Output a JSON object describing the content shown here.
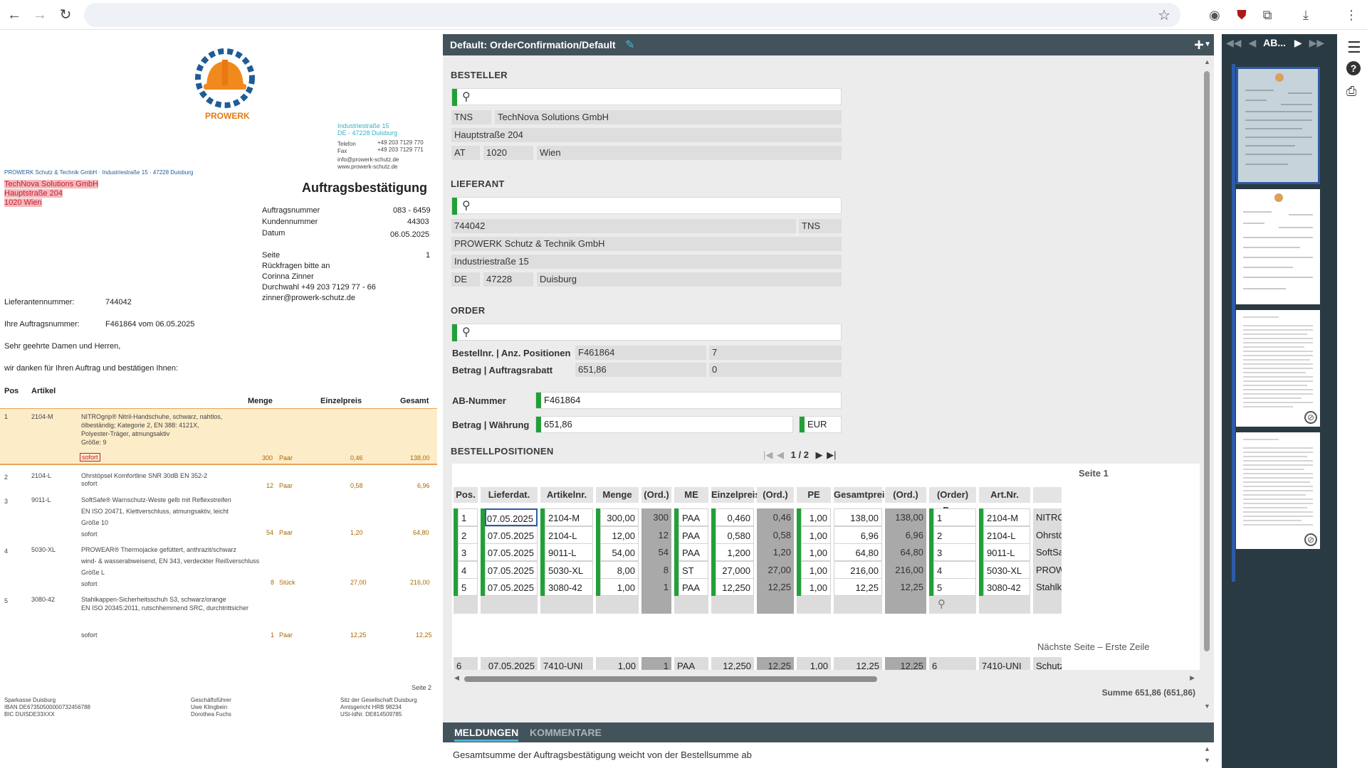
{
  "browser": {
    "back_icon": "arrow-left-icon",
    "forward_icon": "arrow-right-icon",
    "reload_icon": "reload-icon"
  },
  "doc": {
    "brand": "PROWERK",
    "sender_address_block": [
      "Industriestraße 15",
      "DE - 47228 Duisburg"
    ],
    "sender_contact": [
      "Telefon",
      "+49 203 7129 770",
      "Fax",
      "+49 203 7129 771",
      "info@prowerk-schutz.de",
      "www.prowerk-schutz.de"
    ],
    "sender_line": "PROWERK Schutz & Technik GmbH · Industriestraße 15 · 47228 Duisburg",
    "recipient": [
      "TechNova Solutions GmbH",
      "Hauptstraße 204",
      "1020 Wien"
    ],
    "title": "Auftragsbestätigung",
    "meta": [
      {
        "k": "Auftragsnummer",
        "v": "083 - 6459"
      },
      {
        "k": "Kundennummer",
        "v": "44303"
      },
      {
        "k": "Datum",
        "v": "06.05.2025"
      }
    ],
    "seite_label": "Seite",
    "seite_value": "1",
    "contact_lines": [
      "Rückfragen bitte an",
      "Corinna Zinner",
      "Durchwahl +49 203 7129 77 - 66",
      "zinner@prowerk-schutz.de"
    ],
    "lieferantennummer_label": "Lieferantennummer:",
    "lieferantennummer_value": "744042",
    "ihre_label": "Ihre Auftragsnummer:",
    "ihre_value": "F461864 vom 06.05.2025",
    "greeting": "Sehr geehrte Damen und Herren,",
    "intro": "wir danken für Ihren Auftrag und bestätigen Ihnen:",
    "col_pos": "Pos",
    "col_artikel": "Artikel",
    "col_menge": "Menge",
    "col_einzelpreis": "Einzelpreis",
    "col_gesamt": "Gesamt",
    "items": [
      {
        "pos": "1",
        "art": "2104-M",
        "desc": [
          "NITROgrip® Nitril-Handschuhe, schwarz, nahtlos,",
          "ölbeständig; Kategorie 2, EN 388: 4121X,",
          "Polyester-Träger, atmungsaktiv",
          "Größe: 9"
        ],
        "lief": "sofort",
        "menge": "300",
        "me": "Paar",
        "ep": "0,46",
        "ges": "138,00"
      },
      {
        "pos": "2",
        "art": "2104-L",
        "desc": [
          "Ohrstöpsel Komfortline SNR 30dB EN 352-2"
        ],
        "lief": "sofort",
        "menge": "12",
        "me": "Paar",
        "ep": "0,58",
        "ges": "6,96"
      },
      {
        "pos": "3",
        "art": "9011-L",
        "desc": [
          "SoftSafe® Warnschutz-Weste gelb mit Reflexstreifen",
          "EN ISO 20471, Klettverschluss, atmungsaktiv, leicht",
          "Größe 10"
        ],
        "lief": "sofort",
        "menge": "54",
        "me": "Paar",
        "ep": "1,20",
        "ges": "64,80"
      },
      {
        "pos": "4",
        "art": "5030-XL",
        "desc": [
          "PROWEAR® Thermojacke gefüttert, anthrazit/schwarz",
          "wind- & wasserabweisend, EN 343, verdeckter Reißverschluss",
          "Größe L"
        ],
        "lief": "sofort",
        "menge": "8",
        "me": "Stück",
        "ep": "27,00",
        "ges": "216,00"
      },
      {
        "pos": "5",
        "art": "3080-42",
        "desc": [
          "Stahlkappen-Sicherheitsschuh S3, schwarz/orange",
          "EN ISO 20345:2011, rutschhemmend SRC, durchtrittsicher"
        ],
        "lief": "sofort",
        "menge": "1",
        "me": "Paar",
        "ep": "12,25",
        "ges": "12,25"
      }
    ],
    "seite2": "Seite 2",
    "footer_bank": [
      "Sparkasse Duisburg",
      "IBAN   DE67350500000732456788",
      "BIC     DUISDE33XXX"
    ],
    "footer_gf": [
      "Geschäftsführer",
      "Uwe Klingbein",
      "Dorothea Fuchs"
    ],
    "footer_sitz": [
      "Sitz der Gesellschaft   Duisburg",
      "Amtsgericht     HRB     98234",
      "USt-IdNr.     DE814509785"
    ]
  },
  "app": {
    "title": "Default: OrderConfirmation/Default",
    "besteller": {
      "title": "BESTELLER",
      "kurz": "TNS",
      "name": "TechNova Solutions GmbH",
      "street": "Hauptstraße 204",
      "country": "AT",
      "zip": "1020",
      "city": "Wien"
    },
    "lieferant": {
      "title": "LIEFERANT",
      "nr": "744042",
      "kurz": "TNS",
      "name": "PROWERK Schutz & Technik GmbH",
      "street": "Industriestraße 15",
      "country": "DE",
      "zip": "47228",
      "city": "Duisburg"
    },
    "order": {
      "title": "ORDER",
      "bestellnr_label": "Bestellnr. | Anz. Positionen",
      "bestellnr": "F461864",
      "anz": "7",
      "betrag_label": "Betrag | Auftragsrabatt",
      "betrag": "651,86",
      "rabatt": "0",
      "ab_label": "AB-Nummer",
      "ab_value": "F461864",
      "bw_label": "Betrag | Währung",
      "bw_value": "651,86",
      "currency": "EUR"
    },
    "positions": {
      "title": "BESTELLPOSITIONEN",
      "pager": "1 / 2",
      "page_label": "Seite 1",
      "headers": [
        "Pos.",
        "Lieferdat.",
        "Artikelnr.",
        "Menge",
        "(Ord.)",
        "ME",
        "Einzelpreis",
        "(Ord.)",
        "PE",
        "Gesamtpreis",
        "(Ord.)",
        "(Order) Pos.",
        "Art.Nr.",
        ""
      ],
      "rows": [
        [
          "1",
          "07.05.2025",
          "2104-M",
          "300,00",
          "300",
          "PAA",
          "0,460",
          "0,46",
          "1,00",
          "138,00",
          "138,00",
          "1",
          "2104-M",
          "NITROGRIP"
        ],
        [
          "2",
          "07.05.2025",
          "2104-L",
          "12,00",
          "12",
          "PAA",
          "0,580",
          "0,58",
          "1,00",
          "6,96",
          "6,96",
          "2",
          "2104-L",
          "Ohrstöpsel"
        ],
        [
          "3",
          "07.05.2025",
          "9011-L",
          "54,00",
          "54",
          "PAA",
          "1,200",
          "1,20",
          "1,00",
          "64,80",
          "64,80",
          "3",
          "9011-L",
          "SoftSafe"
        ],
        [
          "4",
          "07.05.2025",
          "5030-XL",
          "8,00",
          "8",
          "ST",
          "27,000",
          "27,00",
          "1,00",
          "216,00",
          "216,00",
          "4",
          "5030-XL",
          "PROWEAR"
        ],
        [
          "5",
          "07.05.2025",
          "3080-42",
          "1,00",
          "1",
          "PAA",
          "12,250",
          "12,25",
          "1,00",
          "12,25",
          "12,25",
          "5",
          "3080-42",
          "Stahlkappe"
        ]
      ],
      "next_label": "Nächste Seite – Erste Zeile",
      "next_row": [
        "6",
        "07.05.2025",
        "7410-UNI",
        "1,00",
        "1",
        "PAA",
        "12,250",
        "12,25",
        "1,00",
        "12,25",
        "12,25",
        "6",
        "7410-UNI",
        "Schutzbrille"
      ],
      "sum": "Summe 651,86 (651,86)"
    },
    "tabs": {
      "meldungen": "MELDUNGEN",
      "kommentare": "KOMMENTARE"
    },
    "message": "Gesamtsumme der Auftragsbestätigung weicht von der Bestellsumme ab"
  },
  "thumbs": {
    "nav_label": "AB..."
  }
}
